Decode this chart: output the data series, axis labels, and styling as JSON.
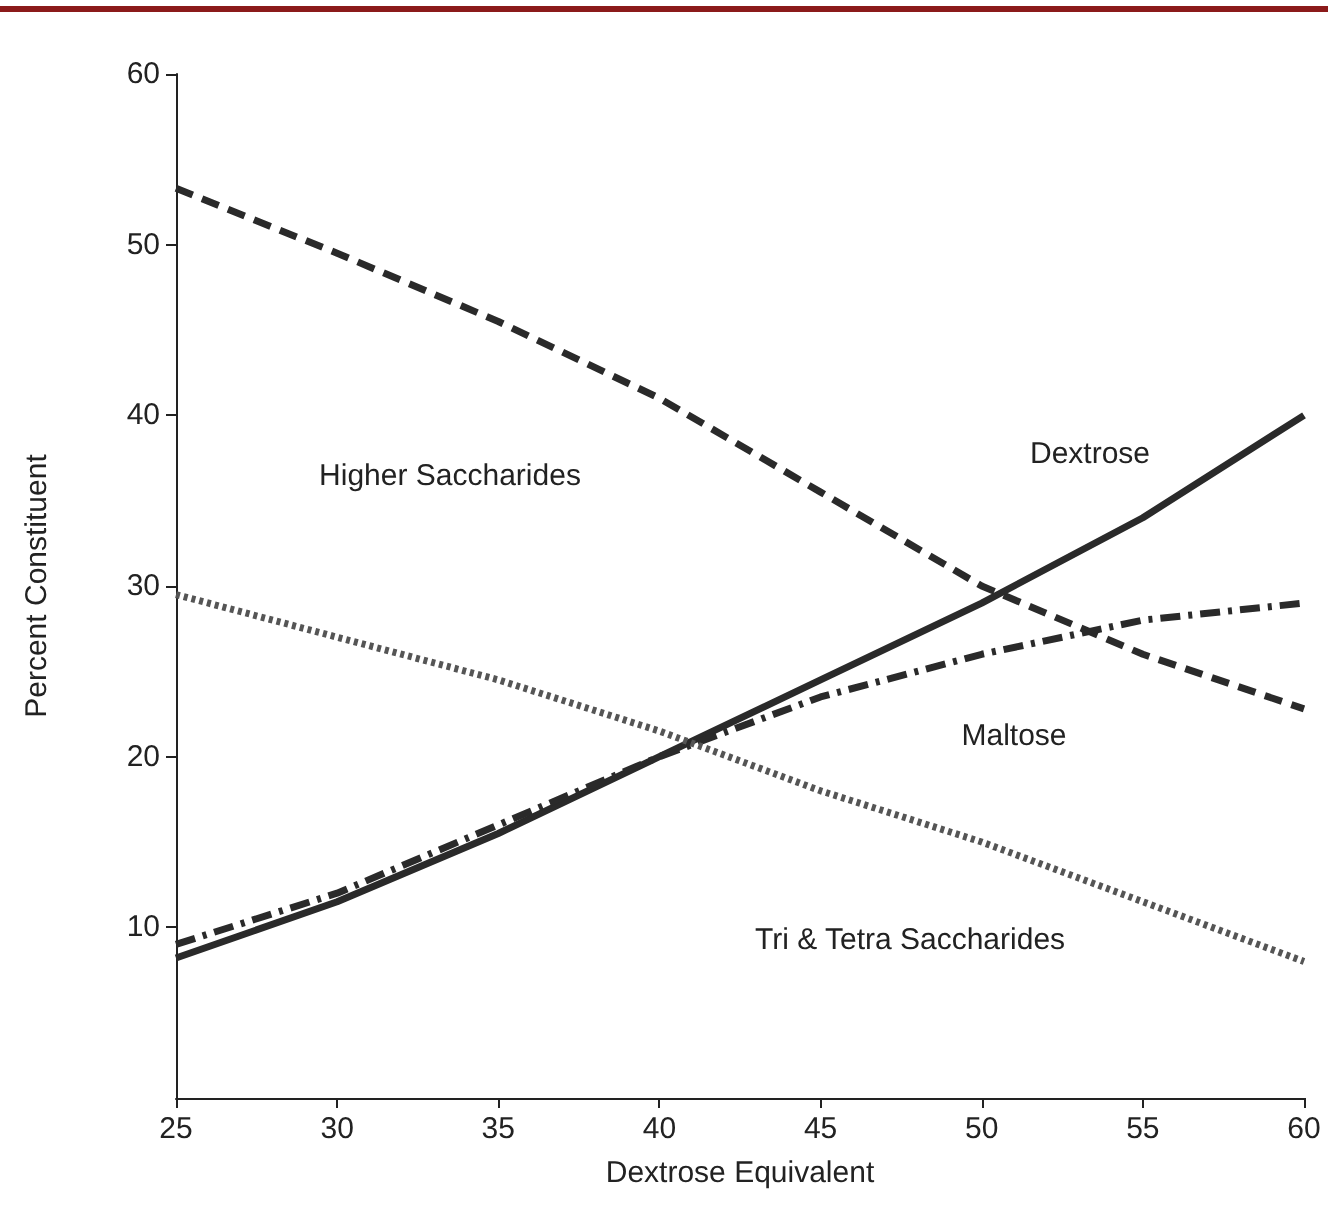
{
  "chart_data": {
    "type": "line",
    "xlabel": "Dextrose Equivalent",
    "ylabel": "Percent Constituent",
    "x": [
      25,
      30,
      35,
      40,
      45,
      50,
      55,
      60
    ],
    "series": [
      {
        "color": "#2a2a2a",
        "line_style": "dashed",
        "values": [
          53.3,
          49.5,
          45.5,
          41,
          35.5,
          30,
          26,
          22.8
        ]
      },
      {
        "color": "#2a2a2a",
        "line_style": "solid",
        "values": [
          8.2,
          11.5,
          15.5,
          20,
          24.5,
          29,
          34,
          40
        ]
      },
      {
        "color": "#2a2a2a",
        "line_style": "dashdot",
        "values": [
          9,
          12,
          16,
          20,
          23.5,
          26,
          28,
          29
        ]
      },
      {
        "color": "#555555",
        "line_style": "dotted",
        "values": [
          29.5,
          27,
          24.5,
          21.5,
          18,
          15,
          11.5,
          8
        ]
      }
    ],
    "annotations": [
      "Higher Saccharides",
      "Dextrose",
      "Maltose",
      "Tri & Tetra Saccharides"
    ],
    "xlim": [
      25,
      60
    ],
    "xticks": [
      25,
      30,
      35,
      40,
      45,
      50,
      55,
      60
    ],
    "ylim": [
      0,
      60
    ],
    "yticks": [
      10,
      20,
      30,
      40,
      50,
      60
    ],
    "grid": false,
    "marker": "none"
  }
}
